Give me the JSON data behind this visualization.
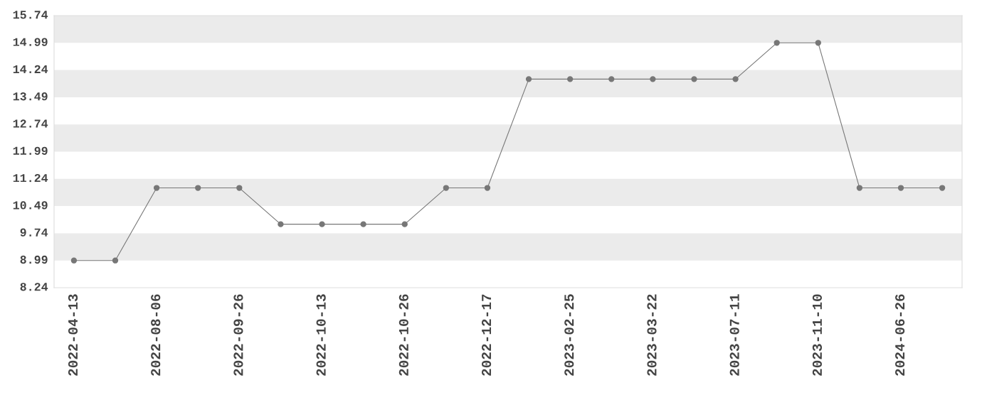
{
  "chart_data": {
    "type": "line",
    "categories": [
      "2022-04-13",
      null,
      "2022-08-06",
      null,
      "2022-09-26",
      null,
      "2022-10-13",
      null,
      "2022-10-26",
      null,
      "2022-12-17",
      null,
      "2023-02-25",
      null,
      "2023-03-22",
      null,
      "2023-07-11",
      null,
      "2023-11-10",
      null,
      "2024-06-26",
      null
    ],
    "series": [
      {
        "color": "#777777",
        "values": [
          8.99,
          8.99,
          10.99,
          10.99,
          10.99,
          9.99,
          9.99,
          9.99,
          9.99,
          10.99,
          10.99,
          13.99,
          13.99,
          13.99,
          13.99,
          13.99,
          13.99,
          14.99,
          14.99,
          10.99,
          10.99,
          10.99
        ]
      }
    ],
    "ylim": [
      8.24,
      15.74
    ],
    "yticks": [
      8.24,
      8.99,
      9.74,
      10.49,
      11.24,
      11.99,
      12.74,
      13.49,
      14.24,
      14.99,
      15.74
    ],
    "bands": [
      {
        "axis": "y",
        "from": 8.99,
        "to": 9.74,
        "color": "#ebebeb"
      },
      {
        "axis": "y",
        "from": 10.49,
        "to": 11.24,
        "color": "#ebebeb"
      },
      {
        "axis": "y",
        "from": 11.99,
        "to": 12.74,
        "color": "#ebebeb"
      },
      {
        "axis": "y",
        "from": 13.49,
        "to": 14.24,
        "color": "#ebebeb"
      },
      {
        "axis": "y",
        "from": 14.99,
        "to": 15.74,
        "color": "#ebebeb"
      }
    ],
    "marker": "circle",
    "line_style": "solid",
    "grid": false,
    "legend": false
  }
}
